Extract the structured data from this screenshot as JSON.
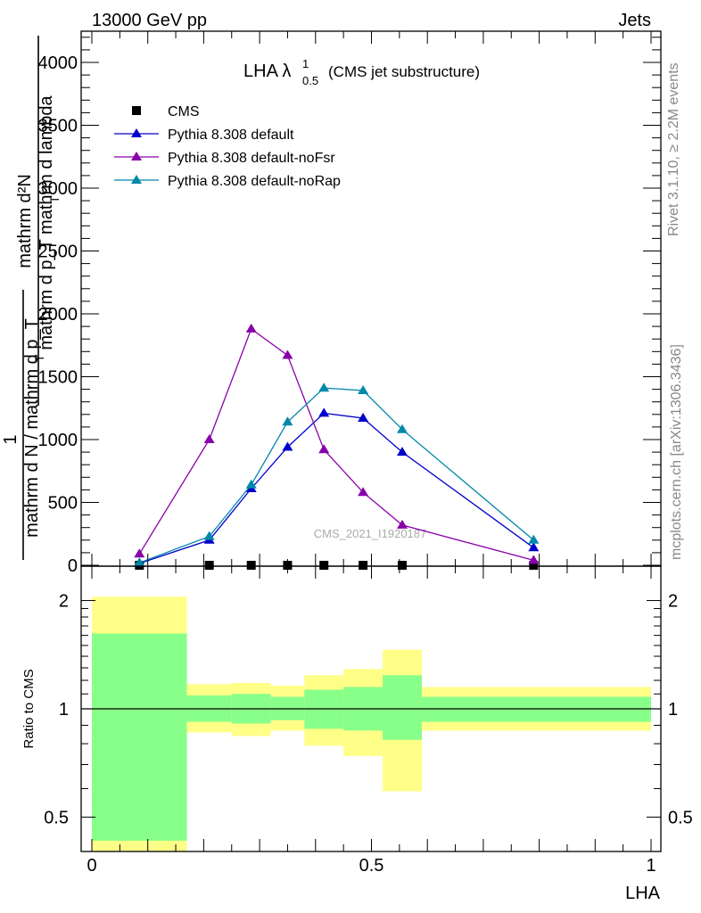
{
  "header": {
    "left": "13000 GeV pp",
    "right": "Jets"
  },
  "side_text": {
    "rivet": "Rivet 3.1.10, ≥ 2.2M events",
    "mcplots": "mcplots.cern.ch [arXiv:1306.3436]"
  },
  "watermark": "CMS_2021_I1920187",
  "title": {
    "main": "LHA λ",
    "sup": "1",
    "sub": "0.5",
    "note": "(CMS jet substructure)"
  },
  "ylabel_top": {
    "num": "mathrm d²N",
    "den": "mathrm d p_T mathrm d lambda",
    "t_sub": "T"
  },
  "ylabel_pre": {
    "num": "1",
    "den": "mathrm d N / mathrm d p_T",
    "t_sub": "T"
  },
  "ylabel_ratio": "Ratio to CMS",
  "xlabel": "LHA",
  "colors": {
    "default": "#0000cc",
    "noFsr": "#8800aa",
    "noRap": "#0088aa",
    "band_outer": "#ffff88",
    "band_inner": "#88ff88"
  },
  "chart_data": [
    {
      "type": "line",
      "xlim": [
        0,
        1
      ],
      "ylim": [
        0,
        4200
      ],
      "y_ticks": [
        0,
        500,
        1000,
        1500,
        2000,
        2500,
        3000,
        3500,
        4000
      ],
      "y_tick_labels": [
        "0",
        "500",
        "1000",
        "1500",
        "2000",
        "2500",
        "3000",
        "3500",
        "4000"
      ],
      "legend_position": "top-left",
      "series": [
        {
          "name": "CMS",
          "marker": "square",
          "color": "#000000",
          "x": [
            0.085,
            0.21,
            0.285,
            0.35,
            0.415,
            0.485,
            0.555,
            0.79
          ],
          "y": [
            0,
            0,
            0,
            0,
            0,
            0,
            0,
            0
          ]
        },
        {
          "name": "Pythia 8.308 default",
          "marker": "triangle",
          "color": "#0000cc",
          "x": [
            0.085,
            0.21,
            0.285,
            0.35,
            0.415,
            0.485,
            0.555,
            0.79
          ],
          "y": [
            15,
            200,
            610,
            940,
            1210,
            1170,
            900,
            140
          ]
        },
        {
          "name": "Pythia 8.308 default-noFsr",
          "marker": "triangle",
          "color": "#8800aa",
          "x": [
            0.085,
            0.21,
            0.285,
            0.35,
            0.415,
            0.485,
            0.555,
            0.79
          ],
          "y": [
            90,
            1000,
            1880,
            1670,
            920,
            580,
            320,
            40
          ]
        },
        {
          "name": "Pythia 8.308 default-noRap",
          "marker": "triangle",
          "color": "#0088aa",
          "x": [
            0.085,
            0.21,
            0.285,
            0.35,
            0.415,
            0.485,
            0.555,
            0.79
          ],
          "y": [
            20,
            230,
            640,
            1140,
            1410,
            1390,
            1080,
            200
          ]
        }
      ]
    },
    {
      "type": "area",
      "xlim": [
        0,
        1
      ],
      "ylim": [
        0.34,
        2.4
      ],
      "log_y": true,
      "y_ticks": [
        0.5,
        1,
        2
      ],
      "y_tick_labels": [
        "0.5",
        "1",
        "2"
      ],
      "x_ticks": [
        0,
        0.5,
        1
      ],
      "x_tick_labels": [
        "0",
        "0.5",
        "1"
      ],
      "reference_line": 1,
      "bins": [
        {
          "x0": 0.0,
          "x1": 0.17,
          "outer_lo": 0.33,
          "outer_hi": 2.05,
          "inner_lo": 0.43,
          "inner_hi": 1.62
        },
        {
          "x0": 0.17,
          "x1": 0.25,
          "outer_lo": 0.86,
          "outer_hi": 1.17,
          "inner_lo": 0.92,
          "inner_hi": 1.09
        },
        {
          "x0": 0.25,
          "x1": 0.32,
          "outer_lo": 0.84,
          "outer_hi": 1.18,
          "inner_lo": 0.91,
          "inner_hi": 1.1
        },
        {
          "x0": 0.32,
          "x1": 0.38,
          "outer_lo": 0.87,
          "outer_hi": 1.16,
          "inner_lo": 0.93,
          "inner_hi": 1.08
        },
        {
          "x0": 0.38,
          "x1": 0.45,
          "outer_lo": 0.79,
          "outer_hi": 1.24,
          "inner_lo": 0.88,
          "inner_hi": 1.13
        },
        {
          "x0": 0.45,
          "x1": 0.52,
          "outer_lo": 0.74,
          "outer_hi": 1.29,
          "inner_lo": 0.87,
          "inner_hi": 1.15
        },
        {
          "x0": 0.52,
          "x1": 0.59,
          "outer_lo": 0.59,
          "outer_hi": 1.46,
          "inner_lo": 0.82,
          "inner_hi": 1.24
        },
        {
          "x0": 0.59,
          "x1": 1.0,
          "outer_lo": 0.87,
          "outer_hi": 1.15,
          "inner_lo": 0.92,
          "inner_hi": 1.08
        }
      ]
    }
  ]
}
